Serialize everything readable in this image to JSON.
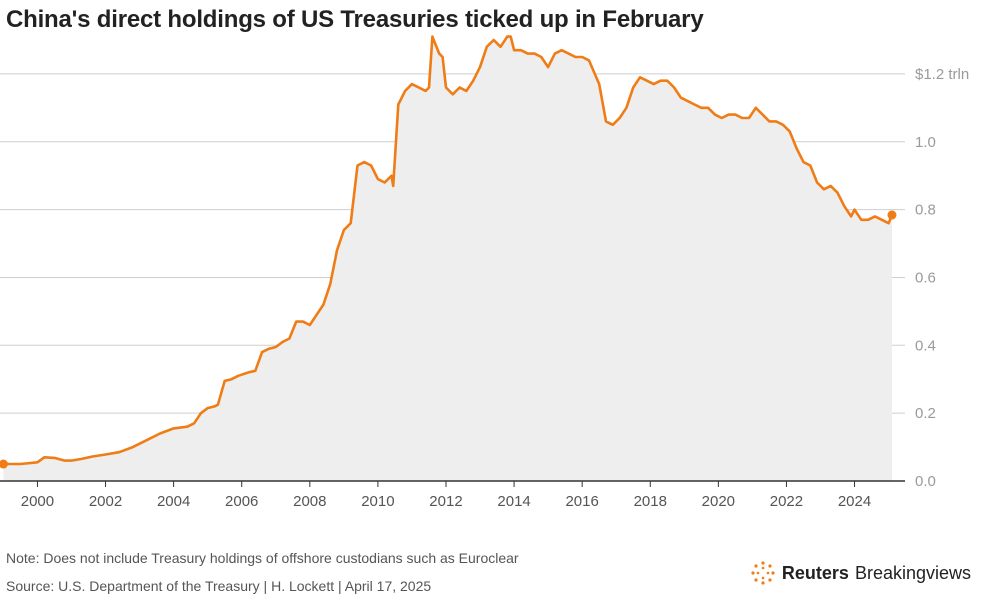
{
  "title": "China's direct holdings of US Treasuries ticked up in February",
  "note": "Note: Does not include Treasury holdings of offshore custodians such as Euroclear",
  "source": "Source: U.S. Department of the Treasury | H. Lockett | April 17, 2025",
  "brand": {
    "name_bold": "Reuters",
    "name_regular": "Breakingviews",
    "icon": "reuters-dot-logo-icon"
  },
  "colors": {
    "line": "#f07c16",
    "area": "#eeeeee",
    "grid": "#cfcfcf",
    "axis": "#333333"
  },
  "chart_data": {
    "type": "area",
    "title": "China's direct holdings of US Treasuries ticked up in February",
    "xlabel": "",
    "ylabel": "",
    "unit_label": "$1.2 trln",
    "xlim": [
      1998.9,
      2025.6
    ],
    "ylim": [
      0,
      1.3
    ],
    "x_ticks": [
      2000,
      2002,
      2004,
      2006,
      2008,
      2010,
      2012,
      2014,
      2016,
      2018,
      2020,
      2022,
      2024
    ],
    "x_tick_labels": [
      "2000",
      "2002",
      "2004",
      "2006",
      "2008",
      "2010",
      "2012",
      "2014",
      "2016",
      "2018",
      "2020",
      "2022",
      "2024"
    ],
    "y_ticks": [
      0,
      0.2,
      0.4,
      0.6,
      0.8,
      1.0,
      1.2
    ],
    "y_tick_labels": [
      "0.0",
      "0.2",
      "0.4",
      "0.6",
      "0.8",
      "1.0",
      "$1.2 trln"
    ],
    "grid": true,
    "series": [
      {
        "values_x": [
          1999.0,
          1999.5,
          2000.0,
          2000.2,
          2000.5,
          2000.8,
          2001.0,
          2001.3,
          2001.6,
          2002.0,
          2002.4,
          2002.8,
          2003.2,
          2003.6,
          2004.0,
          2004.4,
          2004.6,
          2004.8,
          2005.0,
          2005.2,
          2005.3,
          2005.5,
          2005.7,
          2005.9,
          2006.2,
          2006.4,
          2006.6,
          2006.8,
          2007.0,
          2007.2,
          2007.4,
          2007.6,
          2007.8,
          2008.0,
          2008.2,
          2008.4,
          2008.6,
          2008.8,
          2009.0,
          2009.2,
          2009.4,
          2009.6,
          2009.8,
          2010.0,
          2010.2,
          2010.4,
          2010.45,
          2010.6,
          2010.8,
          2011.0,
          2011.2,
          2011.4,
          2011.5,
          2011.6,
          2011.8,
          2011.9,
          2012.0,
          2012.2,
          2012.4,
          2012.6,
          2012.8,
          2013.0,
          2013.2,
          2013.4,
          2013.6,
          2013.8,
          2013.9,
          2014.0,
          2014.2,
          2014.4,
          2014.6,
          2014.8,
          2015.0,
          2015.2,
          2015.4,
          2015.6,
          2015.8,
          2016.0,
          2016.2,
          2016.5,
          2016.7,
          2016.9,
          2017.1,
          2017.3,
          2017.5,
          2017.7,
          2017.9,
          2018.1,
          2018.3,
          2018.5,
          2018.7,
          2018.9,
          2019.1,
          2019.3,
          2019.5,
          2019.7,
          2019.9,
          2020.1,
          2020.3,
          2020.5,
          2020.7,
          2020.9,
          2021.1,
          2021.3,
          2021.5,
          2021.7,
          2021.9,
          2022.1,
          2022.3,
          2022.5,
          2022.7,
          2022.9,
          2023.1,
          2023.3,
          2023.5,
          2023.7,
          2023.9,
          2024.0,
          2024.2,
          2024.4,
          2024.6,
          2024.8,
          2025.0,
          2025.1
        ],
        "values_y": [
          0.05,
          0.05,
          0.055,
          0.07,
          0.068,
          0.06,
          0.06,
          0.065,
          0.072,
          0.078,
          0.085,
          0.1,
          0.12,
          0.14,
          0.155,
          0.16,
          0.17,
          0.2,
          0.215,
          0.22,
          0.225,
          0.295,
          0.3,
          0.31,
          0.32,
          0.325,
          0.38,
          0.39,
          0.395,
          0.41,
          0.42,
          0.47,
          0.47,
          0.46,
          0.49,
          0.52,
          0.58,
          0.68,
          0.74,
          0.76,
          0.93,
          0.94,
          0.93,
          0.89,
          0.88,
          0.9,
          0.87,
          1.11,
          1.15,
          1.17,
          1.16,
          1.15,
          1.16,
          1.31,
          1.26,
          1.25,
          1.16,
          1.14,
          1.16,
          1.15,
          1.18,
          1.22,
          1.28,
          1.3,
          1.28,
          1.31,
          1.31,
          1.27,
          1.27,
          1.26,
          1.26,
          1.25,
          1.22,
          1.26,
          1.27,
          1.26,
          1.25,
          1.25,
          1.24,
          1.17,
          1.06,
          1.05,
          1.07,
          1.1,
          1.16,
          1.19,
          1.18,
          1.17,
          1.18,
          1.18,
          1.16,
          1.13,
          1.12,
          1.11,
          1.1,
          1.1,
          1.08,
          1.07,
          1.08,
          1.08,
          1.07,
          1.07,
          1.1,
          1.08,
          1.06,
          1.06,
          1.05,
          1.03,
          0.98,
          0.94,
          0.93,
          0.88,
          0.86,
          0.87,
          0.85,
          0.81,
          0.78,
          0.8,
          0.77,
          0.77,
          0.78,
          0.77,
          0.76,
          0.784
        ]
      }
    ],
    "markers": [
      {
        "x": 1999.0,
        "y": 0.05
      },
      {
        "x": 2025.1,
        "y": 0.784
      }
    ]
  }
}
